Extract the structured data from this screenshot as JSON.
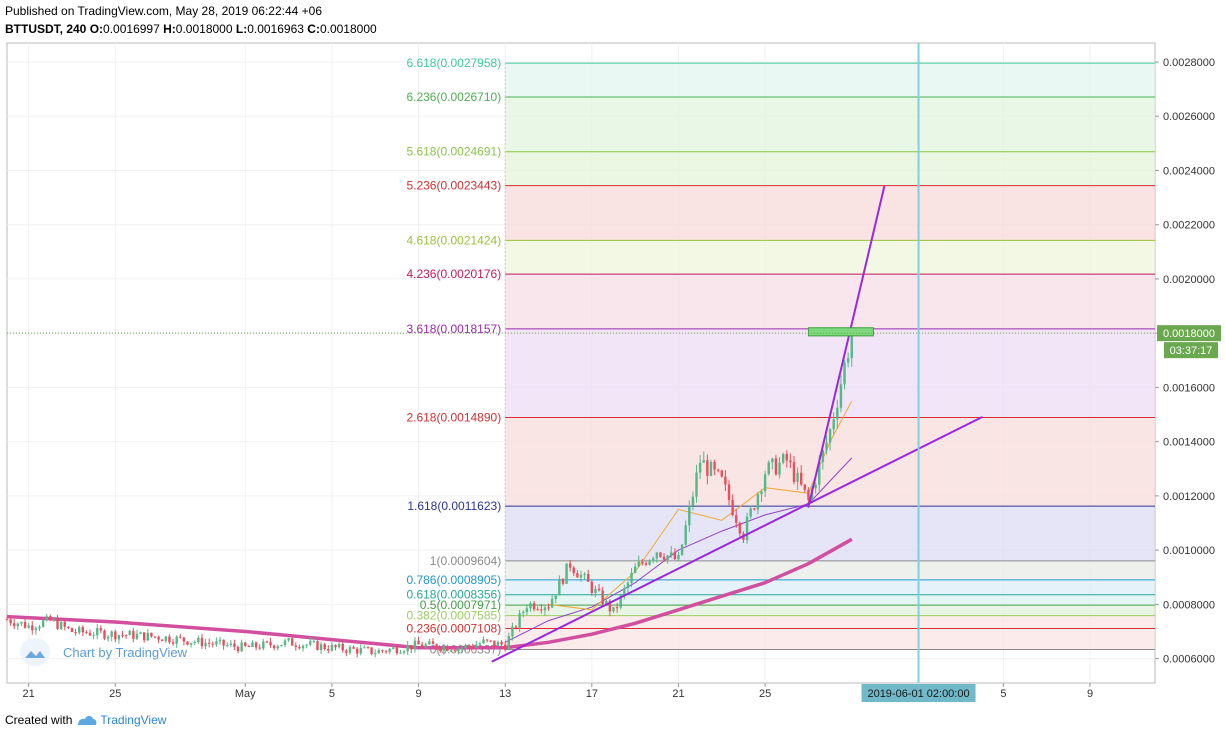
{
  "header": {
    "published": "Published on TradingView.com, May 28, 2019 06:22:44 +06",
    "symbol": "BTTUSDT, 240",
    "o_label": "O:",
    "o_value": "0.0016997",
    "h_label": "H:",
    "h_value": "0.0018000",
    "l_label": "L:",
    "l_value": "0.0016963",
    "c_label": "C:",
    "c_value": "0.0018000"
  },
  "watermark": "Chart by TradingView",
  "footer": {
    "created_with": "Created with",
    "brand": "TradingView"
  },
  "colors": {
    "up": "#53b987",
    "down": "#eb4d5c",
    "ma_thick": "#d14f9e",
    "trendline": "#9c27e0",
    "vline": "#7fd0e0",
    "price_tag": "#6aa84f"
  },
  "chart_data": {
    "type": "candlestick",
    "symbol": "BTTUSDT",
    "interval": "240",
    "price_axis": {
      "range": [
        0.00051,
        0.00287
      ],
      "ticks": [
        "0.0028000",
        "0.0026000",
        "0.0024000",
        "0.0022000",
        "0.0020000",
        "0.0018000",
        "0.0016000",
        "0.0014000",
        "0.0012000",
        "0.0010000",
        "0.0008000",
        "0.0006000"
      ]
    },
    "time_axis": {
      "range": [
        "2019-04-20",
        "2019-06-12"
      ],
      "ticks": [
        {
          "date": "2019-04-21",
          "label": "21"
        },
        {
          "date": "2019-04-25",
          "label": "25"
        },
        {
          "date": "2019-05-01",
          "label": "May"
        },
        {
          "date": "2019-05-05",
          "label": "5"
        },
        {
          "date": "2019-05-09",
          "label": "9"
        },
        {
          "date": "2019-05-13",
          "label": "13"
        },
        {
          "date": "2019-05-17",
          "label": "17"
        },
        {
          "date": "2019-05-21",
          "label": "21"
        },
        {
          "date": "2019-05-25",
          "label": "25"
        },
        {
          "date": "2019-06-05",
          "label": "5"
        },
        {
          "date": "2019-06-09",
          "label": "9"
        }
      ]
    },
    "last_price": "0.0018000",
    "countdown": "03:37:17",
    "crosshair_time_label": "2019-06-01 02:00:00",
    "crosshair_date": "2019-06-01T02:00",
    "fib_extension": {
      "start_date": "2019-05-13",
      "end_date": "2019-06-12",
      "levels": [
        {
          "ratio": "6.618",
          "price": 0.0027958,
          "label": "6.618(0.0027958)",
          "color": "#3ec99a",
          "fill": "#e3f6f0"
        },
        {
          "ratio": "6.236",
          "price": 0.002671,
          "label": "6.236(0.0026710)",
          "color": "#4caf50",
          "fill": "#e1f4df"
        },
        {
          "ratio": "5.618",
          "price": 0.0024691,
          "label": "5.618(0.0024691)",
          "color": "#8bc34a",
          "fill": "#e5f4d9"
        },
        {
          "ratio": "5.236",
          "price": 0.0023443,
          "label": "5.236(0.0023443)",
          "color": "#d32f2f",
          "fill": "#f7dada"
        },
        {
          "ratio": "4.618",
          "price": 0.0021424,
          "label": "4.618(0.0021424)",
          "color": "#9bc13b",
          "fill": "#eef5d9"
        },
        {
          "ratio": "4.236",
          "price": 0.0020176,
          "label": "4.236(0.0020176)",
          "color": "#c2185b",
          "fill": "#f7dce6"
        },
        {
          "ratio": "3.618",
          "price": 0.0018157,
          "label": "3.618(0.0018157)",
          "color": "#9c27b0",
          "fill": "#eddcf5"
        },
        {
          "ratio": "2.618",
          "price": 0.001489,
          "label": "2.618(0.0014890)",
          "color": "#d32f2f",
          "fill": "#f8dcdc"
        },
        {
          "ratio": "1.618",
          "price": 0.0011623,
          "label": "1.618(0.0011623)",
          "color": "#283593",
          "fill": "#dcdcf4"
        },
        {
          "ratio": "1",
          "price": 0.0009604,
          "label": "1(0.0009604)",
          "color": "#8a8a8a",
          "fill": "#e8ebe8"
        },
        {
          "ratio": "0.786",
          "price": 0.0008905,
          "label": "0.786(0.0008905)",
          "color": "#2196c9",
          "fill": "#dceef8"
        },
        {
          "ratio": "0.618",
          "price": 0.0008356,
          "label": "0.618(0.0008356)",
          "color": "#26a69a",
          "fill": "#dcf2ec"
        },
        {
          "ratio": "0.5",
          "price": 0.0007971,
          "label": "0.5(0.0007971)",
          "color": "#43a047",
          "fill": "#e0f2dc"
        },
        {
          "ratio": "0.382",
          "price": 0.0007585,
          "label": "0.382(0.0007585)",
          "color": "#9ccc65",
          "fill": "#f9e4e4"
        },
        {
          "ratio": "0.236",
          "price": 0.0007108,
          "label": "0.236(0.0007108)",
          "color": "#d32f2f",
          "fill": "#f9e4e4"
        },
        {
          "ratio": "0",
          "price": 0.0006337,
          "label": "0(0.0006337)",
          "color": "#8a8a8a",
          "fill": null
        }
      ]
    },
    "trendlines": [
      {
        "from": {
          "date": "2019-05-12T10:00",
          "price": 0.00059
        },
        "to": {
          "date": "2019-06-04T00:00",
          "price": 0.00149
        },
        "color": "#9c27e0",
        "width": 2
      },
      {
        "from": {
          "date": "2019-05-27T00:00",
          "price": 0.00116
        },
        "to": {
          "date": "2019-05-30T12:00",
          "price": 0.00234
        },
        "color": "#9c27e0",
        "width": 2
      }
    ],
    "target_box": {
      "from_date": "2019-05-27T00:00",
      "to_date": "2019-05-30T00:00",
      "price_top": 0.00182,
      "price_bottom": 0.00179,
      "fill": "#7dd87d",
      "stroke": "#3fa03f"
    },
    "moving_average_thick": [
      [
        "2019-04-20",
        0.000755
      ],
      [
        "2019-04-25",
        0.000735
      ],
      [
        "2019-05-01",
        0.0007
      ],
      [
        "2019-05-05",
        0.00067
      ],
      [
        "2019-05-09",
        0.00064
      ],
      [
        "2019-05-13",
        0.00064
      ],
      [
        "2019-05-15",
        0.00066
      ],
      [
        "2019-05-17",
        0.00069
      ],
      [
        "2019-05-19",
        0.00073
      ],
      [
        "2019-05-21",
        0.00078
      ],
      [
        "2019-05-23",
        0.00083
      ],
      [
        "2019-05-25",
        0.00088
      ],
      [
        "2019-05-27",
        0.00095
      ],
      [
        "2019-05-29",
        0.00104
      ]
    ],
    "moving_average_thin": [
      [
        "2019-05-13",
        0.00066
      ],
      [
        "2019-05-15",
        0.00074
      ],
      [
        "2019-05-17",
        0.00079
      ],
      [
        "2019-05-19",
        0.00088
      ],
      [
        "2019-05-21",
        0.001
      ],
      [
        "2019-05-23",
        0.00107
      ],
      [
        "2019-05-25",
        0.00113
      ],
      [
        "2019-05-27",
        0.00117
      ],
      [
        "2019-05-29",
        0.00134
      ]
    ],
    "moving_average_fast": [
      [
        "2019-05-15",
        0.0008
      ],
      [
        "2019-05-17",
        0.00078
      ],
      [
        "2019-05-19",
        0.00092
      ],
      [
        "2019-05-21",
        0.00115
      ],
      [
        "2019-05-22",
        0.00113
      ],
      [
        "2019-05-23",
        0.00111
      ],
      [
        "2019-05-25",
        0.00123
      ],
      [
        "2019-05-27",
        0.00121
      ],
      [
        "2019-05-28",
        0.0014
      ],
      [
        "2019-05-29",
        0.00155
      ]
    ],
    "price_path": [
      [
        "2019-04-20",
        0.000745
      ],
      [
        "2019-04-21",
        0.00072
      ],
      [
        "2019-04-22",
        0.00074
      ],
      [
        "2019-04-23",
        0.0007
      ],
      [
        "2019-04-25",
        0.00069
      ],
      [
        "2019-04-27",
        0.00068
      ],
      [
        "2019-04-29",
        0.00066
      ],
      [
        "2019-05-01",
        0.00064
      ],
      [
        "2019-05-03",
        0.00066
      ],
      [
        "2019-05-05",
        0.00064
      ],
      [
        "2019-05-07",
        0.000625
      ],
      [
        "2019-05-09",
        0.00065
      ],
      [
        "2019-05-11",
        0.00064
      ],
      [
        "2019-05-12",
        0.00066
      ],
      [
        "2019-05-13",
        0.00065
      ],
      [
        "2019-05-14",
        0.0008
      ],
      [
        "2019-05-15",
        0.0008
      ],
      [
        "2019-05-16",
        0.00095
      ],
      [
        "2019-05-17",
        0.00086
      ],
      [
        "2019-05-18",
        0.00077
      ],
      [
        "2019-05-19",
        0.00093
      ],
      [
        "2019-05-20",
        0.001
      ],
      [
        "2019-05-21",
        0.00096
      ],
      [
        "2019-05-22",
        0.00133
      ],
      [
        "2019-05-23",
        0.00125
      ],
      [
        "2019-05-24",
        0.00106
      ],
      [
        "2019-05-25",
        0.00129
      ],
      [
        "2019-05-26",
        0.00133
      ],
      [
        "2019-05-27",
        0.00118
      ],
      [
        "2019-05-28",
        0.00144
      ],
      [
        "2019-05-28T12:00",
        0.00162
      ],
      [
        "2019-05-29",
        0.0018
      ]
    ]
  }
}
